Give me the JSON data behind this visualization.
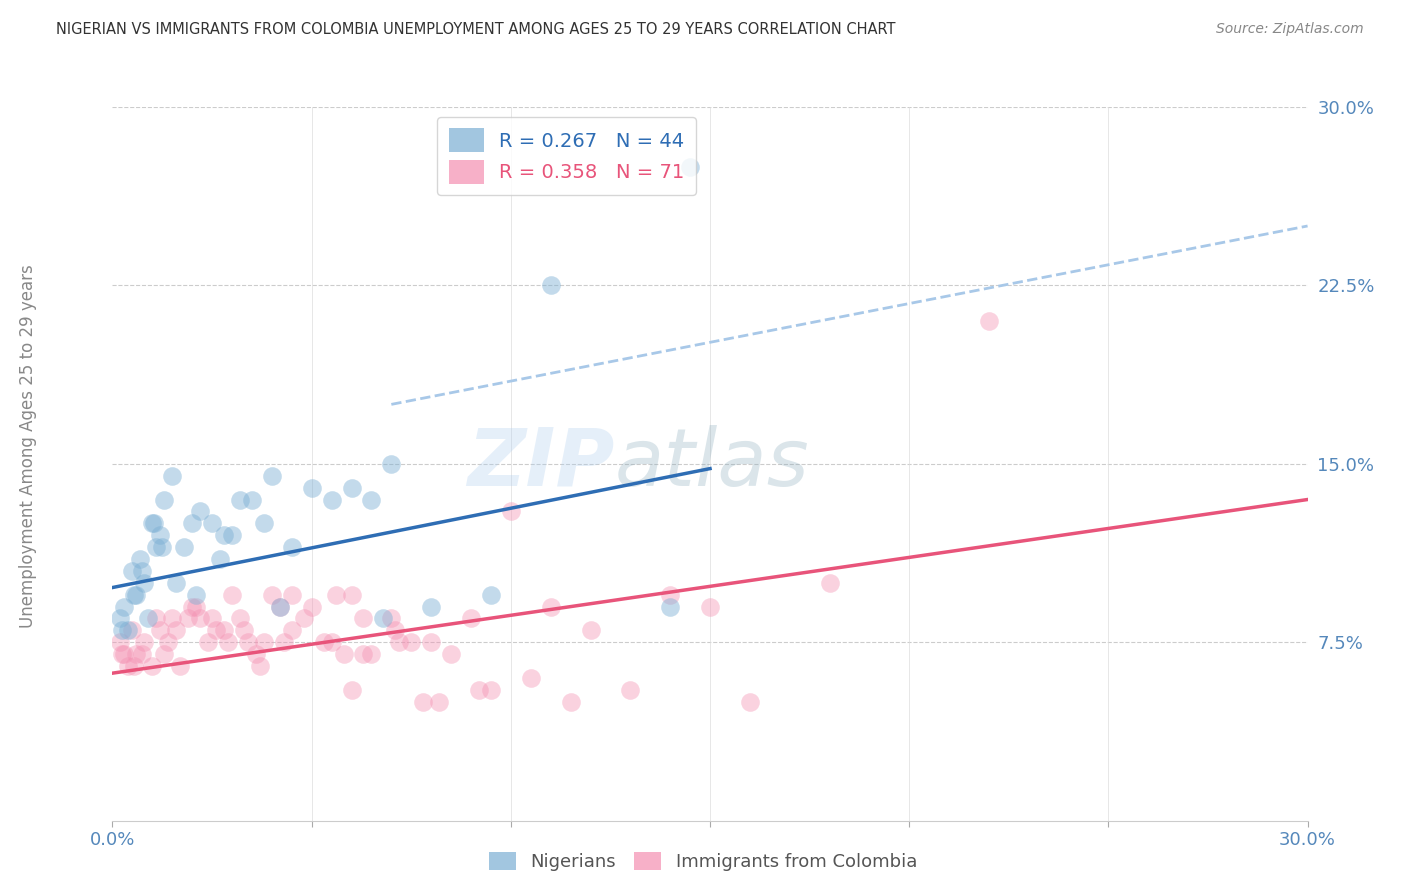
{
  "title": "NIGERIAN VS IMMIGRANTS FROM COLOMBIA UNEMPLOYMENT AMONG AGES 25 TO 29 YEARS CORRELATION CHART",
  "source": "Source: ZipAtlas.com",
  "ylabel": "Unemployment Among Ages 25 to 29 years",
  "ytick_labels": [
    "7.5%",
    "15.0%",
    "22.5%",
    "30.0%"
  ],
  "ytick_values": [
    7.5,
    15.0,
    22.5,
    30.0
  ],
  "xlim": [
    0.0,
    30.0
  ],
  "ylim": [
    0.0,
    30.0
  ],
  "legend_label1": "Nigerians",
  "legend_label2": "Immigrants from Colombia",
  "R1": "0.267",
  "N1": "44",
  "R2": "0.358",
  "N2": "71",
  "color_blue": "#7BAFD4",
  "color_pink": "#F48FB1",
  "color_blue_line": "#2E6DB4",
  "color_pink_line": "#E8547A",
  "color_blue_dashed": "#A8C8E8",
  "watermark_zip": "ZIP",
  "watermark_atlas": "atlas",
  "blue_scatter_x": [
    0.2,
    0.3,
    0.4,
    0.5,
    0.6,
    0.7,
    0.8,
    0.9,
    1.0,
    1.1,
    1.2,
    1.3,
    1.5,
    1.6,
    1.8,
    2.0,
    2.2,
    2.5,
    2.7,
    3.0,
    3.2,
    3.5,
    3.8,
    4.0,
    4.5,
    5.0,
    5.5,
    6.0,
    6.5,
    7.0,
    8.0,
    9.5,
    11.0,
    14.0,
    0.25,
    0.55,
    0.75,
    1.05,
    1.25,
    2.1,
    2.8,
    4.2,
    6.8,
    14.5
  ],
  "blue_scatter_y": [
    8.5,
    9.0,
    8.0,
    10.5,
    9.5,
    11.0,
    10.0,
    8.5,
    12.5,
    11.5,
    12.0,
    13.5,
    14.5,
    10.0,
    11.5,
    12.5,
    13.0,
    12.5,
    11.0,
    12.0,
    13.5,
    13.5,
    12.5,
    14.5,
    11.5,
    14.0,
    13.5,
    14.0,
    13.5,
    15.0,
    9.0,
    9.5,
    22.5,
    9.0,
    8.0,
    9.5,
    10.5,
    12.5,
    11.5,
    9.5,
    12.0,
    9.0,
    8.5,
    27.5
  ],
  "pink_scatter_x": [
    0.2,
    0.3,
    0.4,
    0.5,
    0.6,
    0.8,
    1.0,
    1.2,
    1.4,
    1.5,
    1.7,
    1.9,
    2.0,
    2.2,
    2.4,
    2.6,
    2.8,
    3.0,
    3.2,
    3.4,
    3.6,
    3.8,
    4.0,
    4.2,
    4.5,
    5.0,
    5.5,
    6.0,
    6.5,
    7.0,
    7.5,
    8.0,
    8.5,
    9.0,
    10.0,
    11.0,
    12.0,
    14.0,
    15.0,
    18.0,
    22.0,
    0.25,
    0.55,
    0.75,
    1.1,
    1.3,
    1.6,
    2.1,
    2.5,
    2.9,
    3.3,
    3.7,
    4.3,
    4.8,
    5.3,
    5.8,
    6.3,
    7.2,
    8.2,
    9.5,
    10.5,
    11.5,
    13.0,
    16.0,
    6.0,
    7.8,
    9.2,
    4.5,
    5.6,
    6.3,
    7.1
  ],
  "pink_scatter_y": [
    7.5,
    7.0,
    6.5,
    8.0,
    7.0,
    7.5,
    6.5,
    8.0,
    7.5,
    8.5,
    6.5,
    8.5,
    9.0,
    8.5,
    7.5,
    8.0,
    8.0,
    9.5,
    8.5,
    7.5,
    7.0,
    7.5,
    9.5,
    9.0,
    8.0,
    9.0,
    7.5,
    9.5,
    7.0,
    8.5,
    7.5,
    7.5,
    7.0,
    8.5,
    13.0,
    9.0,
    8.0,
    9.5,
    9.0,
    10.0,
    21.0,
    7.0,
    6.5,
    7.0,
    8.5,
    7.0,
    8.0,
    9.0,
    8.5,
    7.5,
    8.0,
    6.5,
    7.5,
    8.5,
    7.5,
    7.0,
    7.0,
    7.5,
    5.0,
    5.5,
    6.0,
    5.0,
    5.5,
    5.0,
    5.5,
    5.0,
    5.5,
    9.5,
    9.5,
    8.5,
    8.0
  ],
  "blue_line_x0": 0.0,
  "blue_line_y0": 9.8,
  "blue_line_x1": 15.0,
  "blue_line_y1": 14.8,
  "pink_line_x0": 0.0,
  "pink_line_y0": 6.2,
  "pink_line_x1": 30.0,
  "pink_line_y1": 13.5,
  "dashed_line_x0": 7.0,
  "dashed_line_y0": 17.5,
  "dashed_line_x1": 30.0,
  "dashed_line_y1": 25.0
}
